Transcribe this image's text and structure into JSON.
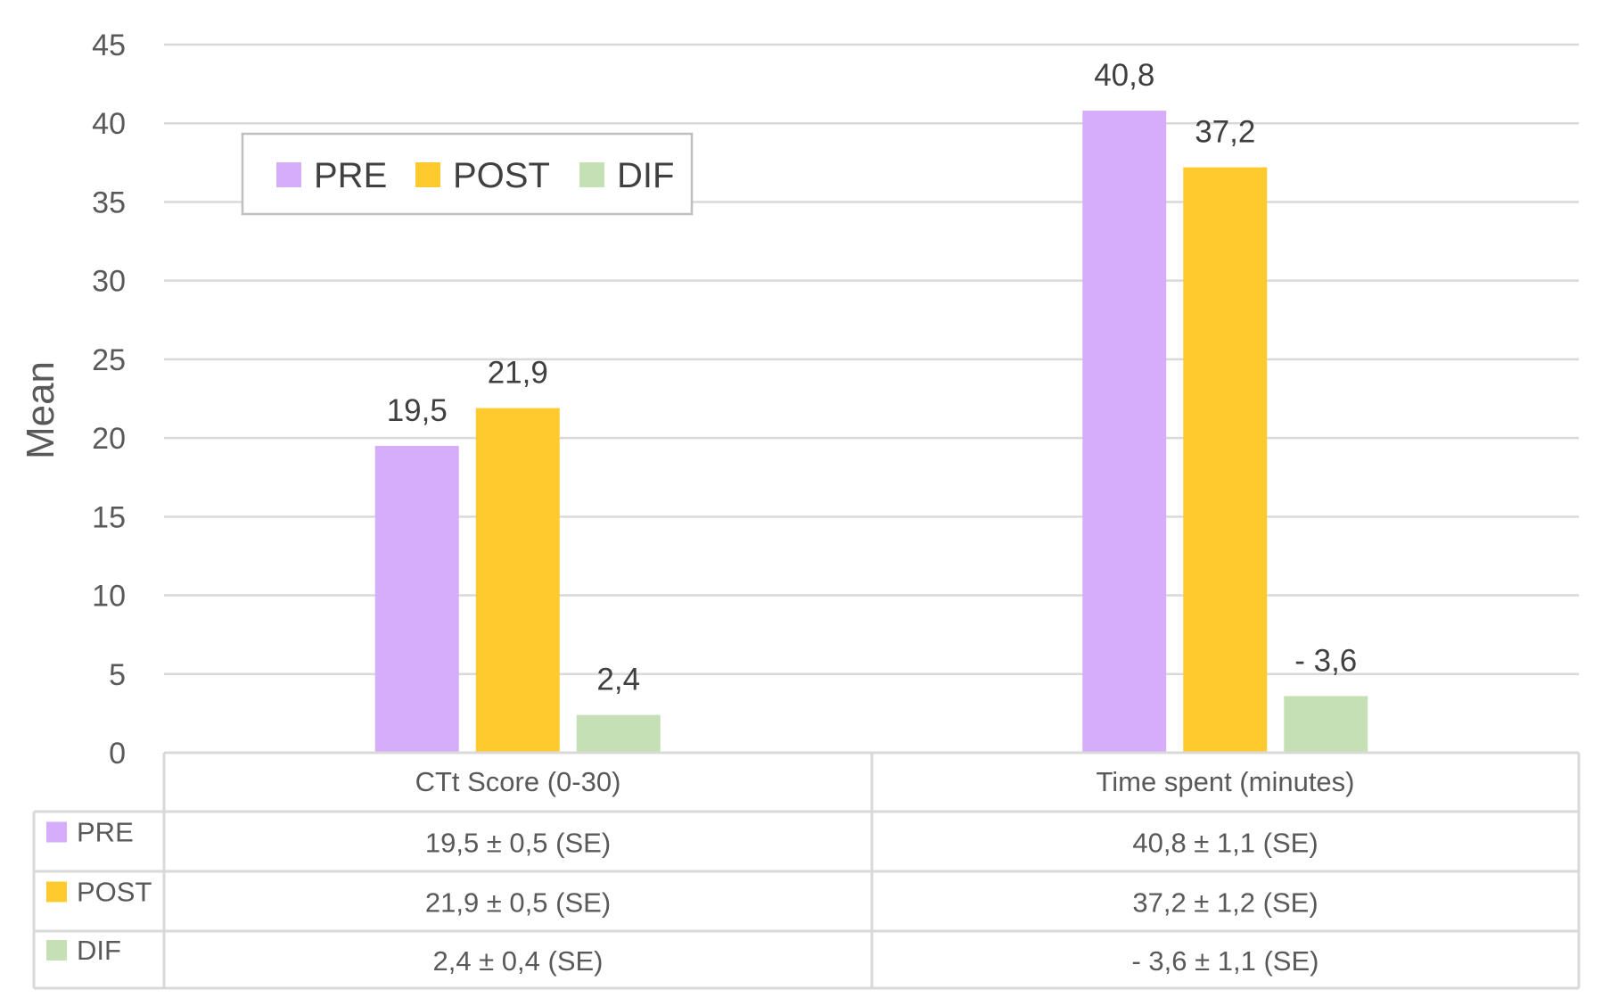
{
  "chart_data": {
    "type": "bar",
    "title": "",
    "xlabel": "",
    "ylabel": "Mean",
    "ylim": [
      0,
      45
    ],
    "yticks": [
      0,
      5,
      10,
      15,
      20,
      25,
      30,
      35,
      40,
      45
    ],
    "ytick_labels": [
      "0",
      "5",
      "10",
      "15",
      "20",
      "25",
      "30",
      "35",
      "40",
      "45"
    ],
    "grid": true,
    "legend_position": "top-left",
    "categories": [
      "CTt Score (0-30)",
      "Time spent (minutes)"
    ],
    "series": [
      {
        "name": "PRE",
        "color": "#d5adfb",
        "values": [
          19.5,
          40.8
        ],
        "data_labels": [
          "19,5",
          "40,8"
        ],
        "table_values": [
          "19,5 ± 0,5 (SE)",
          "40,8 ± 1,1 (SE)"
        ]
      },
      {
        "name": "POST",
        "color": "#ffca2e",
        "values": [
          21.9,
          37.2
        ],
        "data_labels": [
          "21,9",
          "37,2"
        ],
        "table_values": [
          "21,9 ± 0,5 (SE)",
          "37,2 ± 1,2 (SE)"
        ]
      },
      {
        "name": "DIF",
        "color": "#c5e0b4",
        "values": [
          2.4,
          -3.6
        ],
        "data_labels": [
          "2,4",
          "- 3,6"
        ],
        "table_values": [
          "2,4 ± 0,4 (SE)",
          "- 3,6 ± 1,1 (SE)"
        ]
      }
    ],
    "data_table": true
  }
}
